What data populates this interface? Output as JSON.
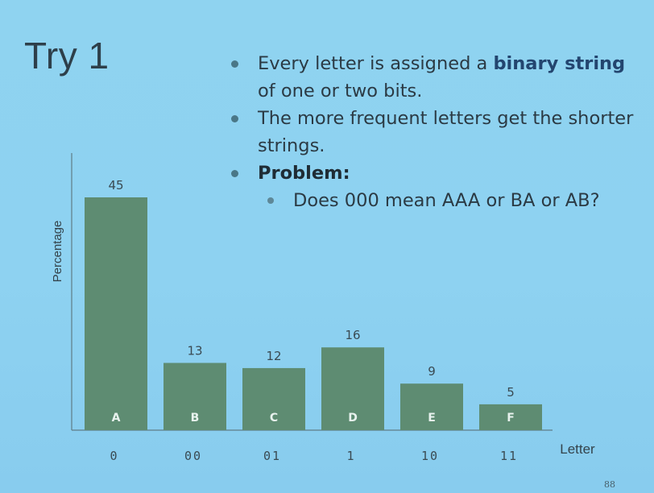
{
  "slide": {
    "title": "Try 1",
    "page_number": "88",
    "bullets": [
      {
        "pre": "Every letter is assigned a ",
        "bold": "binary string",
        "post": " of one or two bits."
      },
      {
        "text": "The more frequent letters get the shorter strings."
      },
      {
        "bold": "Problem:"
      }
    ],
    "sub_bullet": "Does 000 mean AAA or BA or AB?"
  },
  "colors": {
    "bar": "#5e8c72",
    "axis": "#5f7d86",
    "bar_letter": "#e8f2ee",
    "value_label": "#3a4a52",
    "code_label": "#3a4a52"
  },
  "chart_data": {
    "type": "bar",
    "categories": [
      "A",
      "B",
      "C",
      "D",
      "E",
      "F"
    ],
    "values": [
      45,
      13,
      12,
      16,
      9,
      5
    ],
    "codes": [
      "0",
      "00",
      "01",
      "1",
      "10",
      "11"
    ],
    "xlabel": "Letter",
    "ylabel": "Percentage",
    "ylim": [
      0,
      50
    ],
    "grid": false,
    "legend": "none"
  }
}
